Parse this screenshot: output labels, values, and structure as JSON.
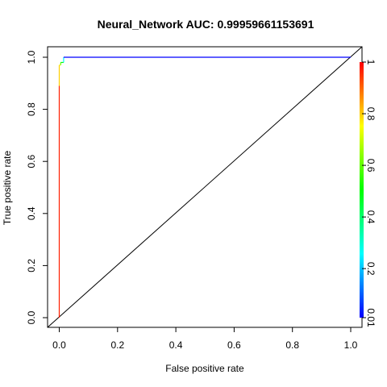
{
  "chart_data": {
    "type": "line",
    "title": "Neural_Network  AUC: 0.99959661153691",
    "xlabel": "False positive rate",
    "ylabel": "True positive rate",
    "xlim": [
      0,
      1
    ],
    "ylim": [
      0,
      1
    ],
    "x_ticks": [
      "0.0",
      "0.2",
      "0.4",
      "0.6",
      "0.8",
      "1.0"
    ],
    "y_ticks": [
      "0.0",
      "0.2",
      "0.4",
      "0.6",
      "0.8",
      "1.0"
    ],
    "grid": false,
    "legend": "none",
    "series": [
      {
        "fpr": [
          0.0,
          0.0,
          0.0,
          0.0,
          0.005,
          0.005,
          0.015,
          0.015,
          1.0
        ],
        "tpr": [
          0.0,
          0.89,
          0.89,
          0.97,
          0.97,
          0.98,
          0.98,
          1.0,
          1.0
        ],
        "cutoff": [
          1.0,
          0.97,
          0.9,
          0.8,
          0.75,
          0.6,
          0.5,
          0.25,
          0.01
        ]
      }
    ],
    "reference_line": {
      "x": [
        0,
        1
      ],
      "y": [
        0,
        1
      ]
    },
    "colorbar": {
      "range": [
        0.01,
        1
      ],
      "ticks": [
        "0.01",
        "0.2",
        "0.4",
        "0.6",
        "0.8",
        "1"
      ],
      "colors": [
        "#0000ff",
        "#00ffff",
        "#00ff00",
        "#ffff00",
        "#ff0000"
      ]
    }
  }
}
